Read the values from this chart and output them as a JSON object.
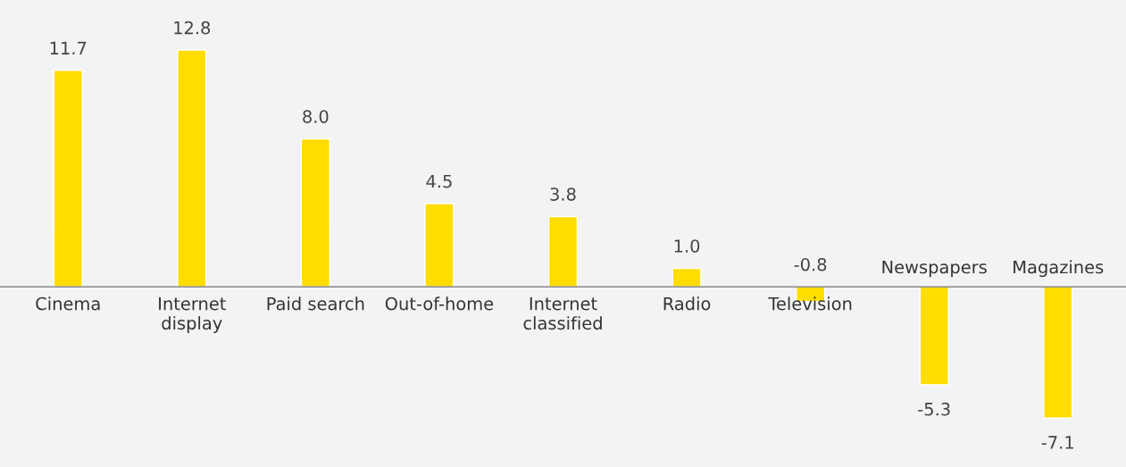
{
  "chart_data": {
    "type": "bar",
    "categories": [
      "Cinema",
      "Internet\ndisplay",
      "Paid search",
      "Out-of-home",
      "Internet\nclassified",
      "Radio",
      "Television",
      "Newspapers",
      "Magazines"
    ],
    "values": [
      11.7,
      12.8,
      8.0,
      4.5,
      3.8,
      1.0,
      -0.8,
      -5.3,
      -7.1
    ],
    "color": "#ffdd00",
    "value_labels": [
      "11.7",
      "12.8",
      "8.0",
      "4.5",
      "3.8",
      "1.0",
      "-0.8",
      "-5.3",
      "-7.1"
    ]
  }
}
